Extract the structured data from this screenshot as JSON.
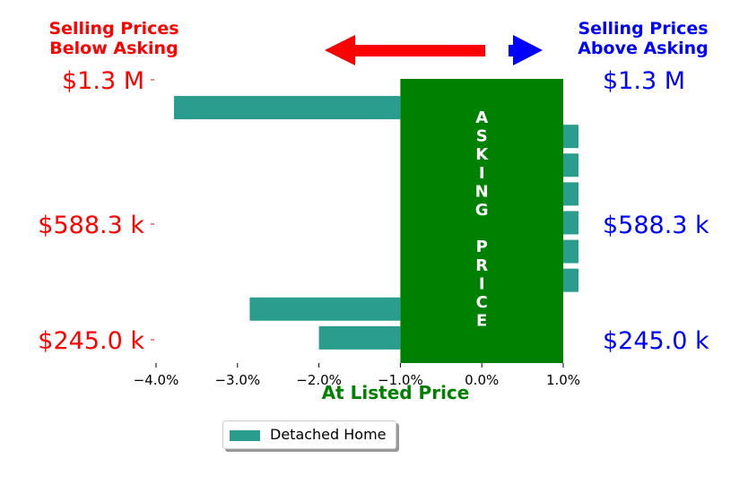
{
  "header": {
    "left_line1": "Selling Prices",
    "left_line2": "Below Asking",
    "right_line1": "Selling Prices",
    "right_line2": "Above Asking"
  },
  "legend": {
    "label": "Detached Home"
  },
  "colors": {
    "below": "#ff0000",
    "above": "#0000ff",
    "bar": "#2a9d8f",
    "asking_band": "#008000",
    "asking_text": "#ffffff",
    "xlabel": "#008000"
  },
  "chart_data": {
    "type": "bar",
    "orientation": "horizontal",
    "title": "",
    "xlabel": "At Listed Price",
    "ylabel": "",
    "xlim": [
      -4.0,
      1.0
    ],
    "xticks": [
      "−4.0%",
      "−3.0%",
      "−2.0%",
      "−1.0%",
      "0.0%",
      "1.0%"
    ],
    "ytick_labels_left": [
      "$1.3 M",
      "$588.3 k",
      "$245.0 k"
    ],
    "ytick_labels_right": [
      "$1.3 M",
      "$588.3 k",
      "$245.0 k"
    ],
    "band_label": "ASKING PRICE",
    "band_range": [
      -1.0,
      1.0
    ],
    "series": [
      {
        "name": "Detached Home",
        "values": [
          -3.78,
          1.2,
          1.2,
          1.2,
          1.2,
          1.2,
          1.2,
          -2.85,
          -2.0
        ]
      }
    ],
    "arrows": [
      "left-red",
      "right-blue"
    ],
    "legend_position": "lower-center",
    "grid": false
  }
}
